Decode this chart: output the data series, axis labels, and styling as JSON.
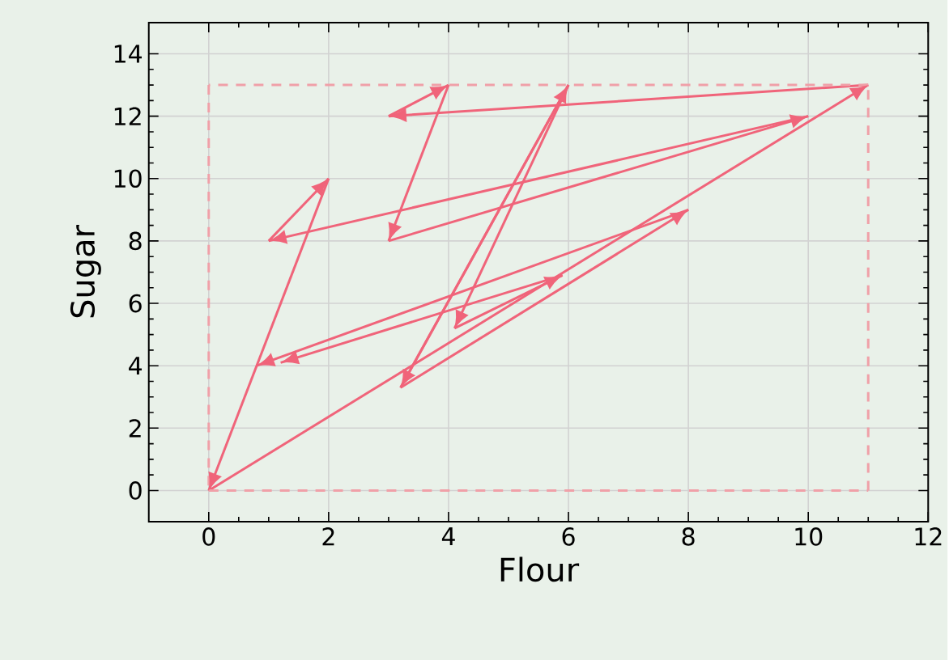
{
  "chart_data": {
    "type": "line",
    "xlabel": "Flour",
    "ylabel": "Sugar",
    "xlim": [
      -1,
      12
    ],
    "ylim": [
      -1,
      15
    ],
    "xticks": [
      0,
      2,
      4,
      6,
      8,
      10,
      12
    ],
    "yticks": [
      0,
      2,
      4,
      6,
      8,
      10,
      12,
      14
    ],
    "grid": true,
    "series": [
      {
        "color": "#f0647a",
        "x": [
          0,
          11
        ],
        "values": [
          0,
          13
        ]
      },
      {
        "color": "#f0647a",
        "x": [
          11,
          3
        ],
        "values": [
          13,
          12
        ]
      },
      {
        "color": "#f0647a",
        "x": [
          3,
          4
        ],
        "values": [
          12,
          13
        ]
      },
      {
        "color": "#f0647a",
        "x": [
          4,
          3
        ],
        "values": [
          13,
          8
        ]
      },
      {
        "color": "#f0647a",
        "x": [
          3,
          10
        ],
        "values": [
          8,
          12
        ]
      },
      {
        "color": "#f0647a",
        "x": [
          10,
          1
        ],
        "values": [
          12,
          8
        ]
      },
      {
        "color": "#f0647a",
        "x": [
          1,
          2
        ],
        "values": [
          8,
          10
        ]
      },
      {
        "color": "#f0647a",
        "x": [
          2,
          0
        ],
        "values": [
          10,
          0
        ]
      },
      {
        "color": "#f0647a",
        "x": [
          6,
          3.2
        ],
        "values": [
          13,
          3.3
        ]
      },
      {
        "color": "#f0647a",
        "x": [
          3.2,
          8
        ],
        "values": [
          3.3,
          9
        ]
      },
      {
        "color": "#f0647a",
        "x": [
          8,
          0.8
        ],
        "values": [
          9,
          4
        ]
      },
      {
        "color": "#f0647a",
        "x": [
          3.2,
          6
        ],
        "values": [
          3.3,
          13
        ]
      },
      {
        "color": "#f0647a",
        "x": [
          6,
          4.1
        ],
        "values": [
          13,
          5.2
        ]
      },
      {
        "color": "#f0647a",
        "x": [
          4.1,
          5.9
        ],
        "values": [
          5.2,
          6.9
        ]
      },
      {
        "color": "#f0647a",
        "x": [
          5.9,
          1.2
        ],
        "values": [
          6.9,
          4.1
        ]
      },
      {
        "color": "#f0a0a8",
        "line_style": "dashed",
        "x": [
          0,
          11
        ],
        "values": [
          0,
          0
        ]
      },
      {
        "color": "#f0a0a8",
        "line_style": "dashed",
        "x": [
          11,
          11
        ],
        "values": [
          0,
          13
        ]
      },
      {
        "color": "#f0a0a8",
        "line_style": "dashed",
        "x": [
          11,
          0
        ],
        "values": [
          13,
          13
        ]
      },
      {
        "color": "#f0a0a8",
        "line_style": "dashed",
        "x": [
          0,
          0
        ],
        "values": [
          13,
          0
        ]
      }
    ]
  }
}
